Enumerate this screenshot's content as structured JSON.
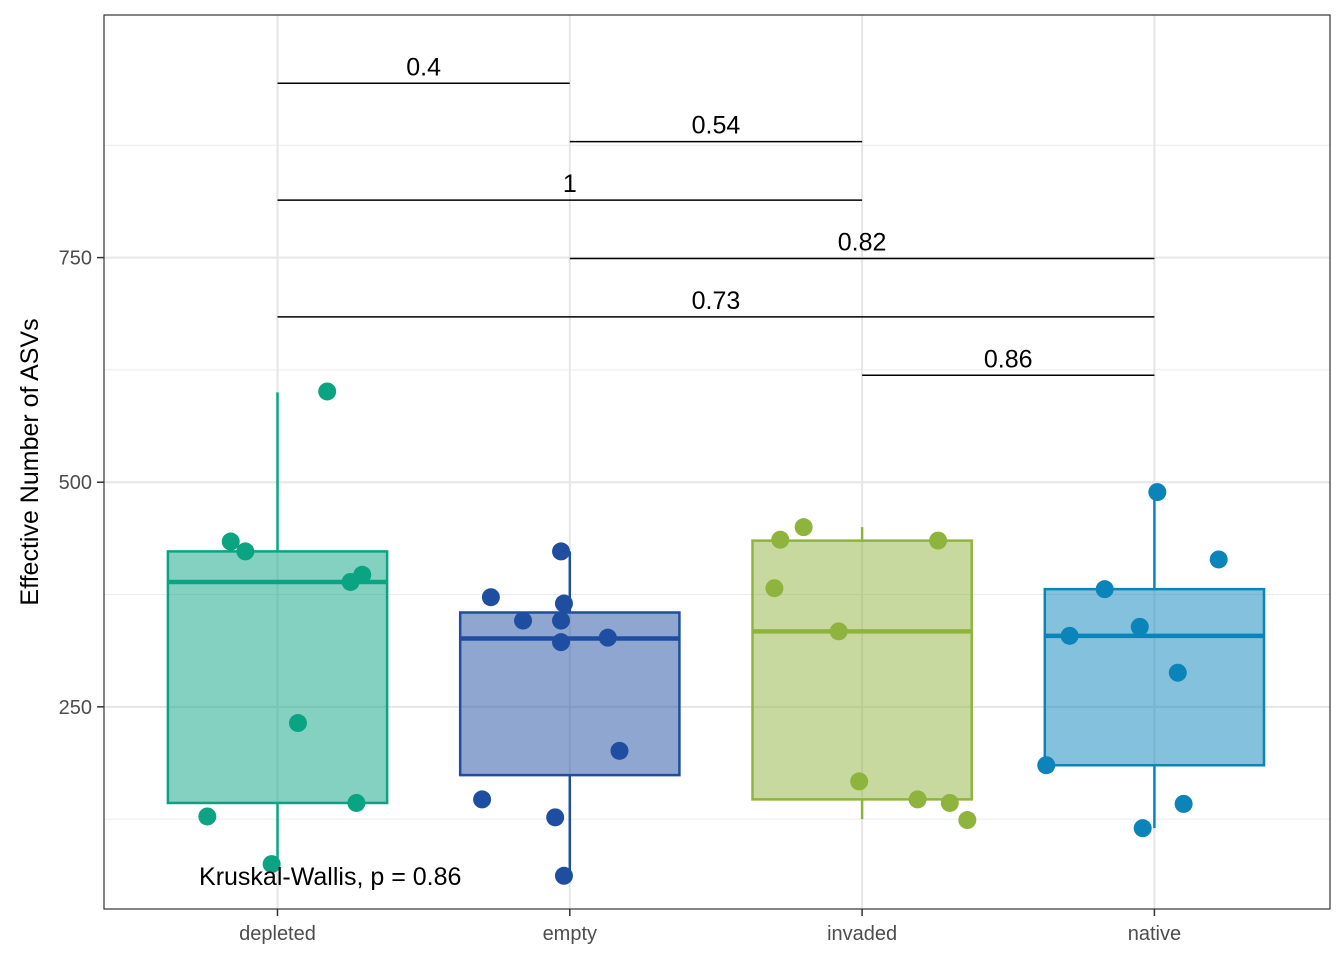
{
  "chart_data": {
    "type": "box",
    "title": "",
    "xlabel": "",
    "ylabel": "Effective Number of ASVs",
    "ylim": [
      25,
      1020
    ],
    "y_ticks": [
      250,
      500,
      750
    ],
    "y_tick_labels": [
      "250",
      "500",
      "750"
    ],
    "categories": [
      "depleted",
      "empty",
      "invaded",
      "native"
    ],
    "colors": [
      "#0aa483",
      "#1f4ea1",
      "#8fb43e",
      "#0a84b9"
    ],
    "grid": true,
    "legend": "none",
    "boxes": [
      {
        "category": "depleted",
        "whisker_low": 75,
        "q1": 143,
        "median": 389,
        "q3": 423,
        "whisker_high": 600
      },
      {
        "category": "empty",
        "whisker_low": 62,
        "q1": 174,
        "median": 326,
        "q3": 355,
        "whisker_high": 423
      },
      {
        "category": "invaded",
        "whisker_low": 125,
        "q1": 147,
        "median": 334,
        "q3": 435,
        "whisker_high": 450
      },
      {
        "category": "native",
        "whisker_low": 115,
        "q1": 185,
        "median": 329,
        "q3": 381,
        "whisker_high": 489
      }
    ],
    "points": [
      {
        "category": "depleted",
        "x": 0.76,
        "y": 128
      },
      {
        "category": "depleted",
        "x": 0.84,
        "y": 434
      },
      {
        "category": "depleted",
        "x": 0.89,
        "y": 423
      },
      {
        "category": "depleted",
        "x": 0.98,
        "y": 75
      },
      {
        "category": "depleted",
        "x": 1.07,
        "y": 232
      },
      {
        "category": "depleted",
        "x": 1.17,
        "y": 601
      },
      {
        "category": "depleted",
        "x": 1.25,
        "y": 389
      },
      {
        "category": "depleted",
        "x": 1.27,
        "y": 143
      },
      {
        "category": "depleted",
        "x": 1.29,
        "y": 397
      },
      {
        "category": "empty",
        "x": 1.7,
        "y": 147
      },
      {
        "category": "empty",
        "x": 1.73,
        "y": 372
      },
      {
        "category": "empty",
        "x": 1.84,
        "y": 346
      },
      {
        "category": "empty",
        "x": 1.95,
        "y": 127
      },
      {
        "category": "empty",
        "x": 1.97,
        "y": 423
      },
      {
        "category": "empty",
        "x": 1.97,
        "y": 346
      },
      {
        "category": "empty",
        "x": 1.97,
        "y": 322
      },
      {
        "category": "empty",
        "x": 1.98,
        "y": 365
      },
      {
        "category": "empty",
        "x": 1.98,
        "y": 62
      },
      {
        "category": "empty",
        "x": 2.13,
        "y": 327
      },
      {
        "category": "empty",
        "x": 2.17,
        "y": 201
      },
      {
        "category": "invaded",
        "x": 2.7,
        "y": 382
      },
      {
        "category": "invaded",
        "x": 2.72,
        "y": 436
      },
      {
        "category": "invaded",
        "x": 2.8,
        "y": 450
      },
      {
        "category": "invaded",
        "x": 2.92,
        "y": 334
      },
      {
        "category": "invaded",
        "x": 2.99,
        "y": 167
      },
      {
        "category": "invaded",
        "x": 3.19,
        "y": 147
      },
      {
        "category": "invaded",
        "x": 3.26,
        "y": 435
      },
      {
        "category": "invaded",
        "x": 3.3,
        "y": 143
      },
      {
        "category": "invaded",
        "x": 3.36,
        "y": 124
      },
      {
        "category": "native",
        "x": 3.63,
        "y": 185
      },
      {
        "category": "native",
        "x": 3.71,
        "y": 329
      },
      {
        "category": "native",
        "x": 3.83,
        "y": 381
      },
      {
        "category": "native",
        "x": 3.95,
        "y": 339
      },
      {
        "category": "native",
        "x": 3.96,
        "y": 115
      },
      {
        "category": "native",
        "x": 4.01,
        "y": 489
      },
      {
        "category": "native",
        "x": 4.08,
        "y": 288
      },
      {
        "category": "native",
        "x": 4.1,
        "y": 142
      },
      {
        "category": "native",
        "x": 4.22,
        "y": 414
      }
    ],
    "comparisons": [
      {
        "from": "depleted",
        "to": "empty",
        "label": "0.4",
        "y": 944
      },
      {
        "from": "empty",
        "to": "invaded",
        "label": "0.54",
        "y": 879
      },
      {
        "from": "depleted",
        "to": "invaded",
        "label": "1",
        "y": 814
      },
      {
        "from": "empty",
        "to": "native",
        "label": "0.82",
        "y": 749
      },
      {
        "from": "depleted",
        "to": "native",
        "label": "0.73",
        "y": 684
      },
      {
        "from": "invaded",
        "to": "native",
        "label": "0.86",
        "y": 619
      }
    ],
    "annotation": {
      "text": "Kruskal-Wallis, p = 0.86",
      "x": 0.8,
      "y": 62
    }
  }
}
